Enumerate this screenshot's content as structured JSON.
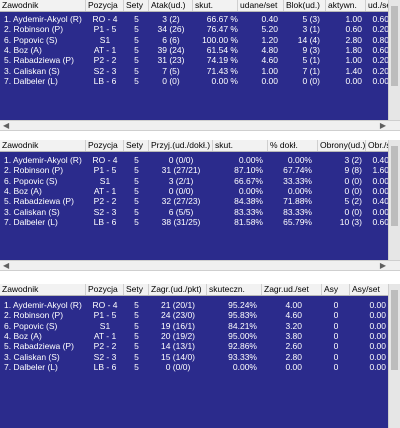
{
  "tables": [
    {
      "headers": [
        "Zawodnik",
        "Pozycja",
        "Sety",
        "Atak(ud.)",
        "skut.",
        "udane/set",
        "Blok(ud.)",
        "aktywn.",
        "ud./se"
      ],
      "rows": [
        [
          "1. Aydemir-Akyol (R)",
          "RO - 4",
          "5",
          "3 (2)",
          "66.67 %",
          "0.40",
          "5 (3)",
          "1.00",
          "0.60"
        ],
        [
          "2. Robinson (P)",
          "P1 - 5",
          "5",
          "34 (26)",
          "76.47 %",
          "5.20",
          "3 (1)",
          "0.60",
          "0.20"
        ],
        [
          "6. Popovic (S)",
          "S1",
          "5",
          "6 (6)",
          "100.00 %",
          "1.20",
          "14 (4)",
          "2.80",
          "0.80"
        ],
        [
          "4. Boz (A)",
          "AT - 1",
          "5",
          "39 (24)",
          "61.54 %",
          "4.80",
          "9 (3)",
          "1.80",
          "0.60"
        ],
        [
          "5. Rabadziewa (P)",
          "P2 - 2",
          "5",
          "31 (23)",
          "74.19 %",
          "4.60",
          "5 (1)",
          "1.00",
          "0.20"
        ],
        [
          "3. Caliskan (S)",
          "S2 - 3",
          "5",
          "7 (5)",
          "71.43 %",
          "1.00",
          "7 (1)",
          "1.40",
          "0.20"
        ],
        [
          "7. Dalbeler (L)",
          "LB - 6",
          "5",
          "0 (0)",
          "0.00 %",
          "0.00",
          "0 (0)",
          "0.00",
          "0.00"
        ]
      ]
    },
    {
      "headers": [
        "Zawodnik",
        "Pozycja",
        "Sety",
        "Przyj.(ud./dokł.)",
        "skut.",
        "% dokł.",
        "Obrony(ud.)",
        "Obr./se"
      ],
      "rows": [
        [
          "1. Aydemir-Akyol (R)",
          "RO - 4",
          "5",
          "0 (0/0)",
          "0.00%",
          "0.00%",
          "3 (2)",
          "0.40"
        ],
        [
          "2. Robinson (P)",
          "P1 - 5",
          "5",
          "31 (27/21)",
          "87.10%",
          "67.74%",
          "9 (8)",
          "1.60"
        ],
        [
          "6. Popovic (S)",
          "S1",
          "5",
          "3 (2/1)",
          "66.67%",
          "33.33%",
          "0 (0)",
          "0.00"
        ],
        [
          "4. Boz (A)",
          "AT - 1",
          "5",
          "0 (0/0)",
          "0.00%",
          "0.00%",
          "0 (0)",
          "0.00"
        ],
        [
          "5. Rabadziewa (P)",
          "P2 - 2",
          "5",
          "32 (27/23)",
          "84.38%",
          "71.88%",
          "5 (2)",
          "0.40"
        ],
        [
          "3. Caliskan (S)",
          "S2 - 3",
          "5",
          "6 (5/5)",
          "83.33%",
          "83.33%",
          "0 (0)",
          "0.00"
        ],
        [
          "7. Dalbeler (L)",
          "LB - 6",
          "5",
          "38 (31/25)",
          "81.58%",
          "65.79%",
          "10 (3)",
          "0.60"
        ]
      ]
    },
    {
      "headers": [
        "Zawodnik",
        "Pozycja",
        "Sety",
        "Zagr.(ud./pkt)",
        "skuteczn.",
        "Zagr.ud./set",
        "Asy",
        "Asy/set"
      ],
      "rows": [
        [
          "1. Aydemir-Akyol (R)",
          "RO - 4",
          "5",
          "21 (20/1)",
          "95.24%",
          "4.00",
          "0",
          "0.00"
        ],
        [
          "2. Robinson (P)",
          "P1 - 5",
          "5",
          "24 (23/0)",
          "95.83%",
          "4.60",
          "0",
          "0.00"
        ],
        [
          "6. Popovic (S)",
          "S1",
          "5",
          "19 (16/1)",
          "84.21%",
          "3.20",
          "0",
          "0.00"
        ],
        [
          "4. Boz (A)",
          "AT - 1",
          "5",
          "20 (19/2)",
          "95.00%",
          "3.80",
          "0",
          "0.00"
        ],
        [
          "5. Rabadziewa (P)",
          "P2 - 2",
          "5",
          "14 (13/1)",
          "92.86%",
          "2.60",
          "0",
          "0.00"
        ],
        [
          "3. Caliskan (S)",
          "S2 - 3",
          "5",
          "15 (14/0)",
          "93.33%",
          "2.80",
          "0",
          "0.00"
        ],
        [
          "7. Dalbeler (L)",
          "LB - 6",
          "5",
          "0 (0/0)",
          "0.00%",
          "0.00",
          "0",
          "0.00"
        ]
      ]
    }
  ],
  "colors": {
    "grid_background": "#2b2b8c",
    "header_background": "#f2f2f2",
    "cell_text": "#ffffff"
  }
}
